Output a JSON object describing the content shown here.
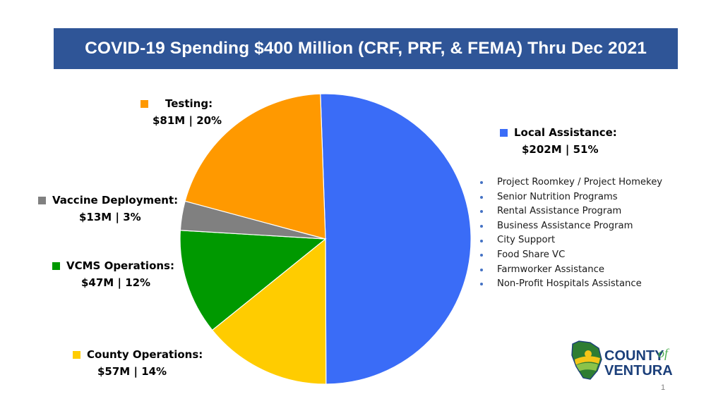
{
  "title": "COVID-19 Spending $400 Million (CRF, PRF, & FEMA) Thru Dec 2021",
  "chart_data": {
    "type": "pie",
    "title": "COVID-19 Spending $400 Million (CRF, PRF, & FEMA) Thru Dec 2021",
    "start_angle_deg": -2,
    "direction": "clockwise",
    "slices": [
      {
        "label": "Local Assistance:",
        "amount": "$202M",
        "percent_text": "51%",
        "value": 202,
        "color": "#3a6cf7"
      },
      {
        "label": "County Operations:",
        "amount": "$57M",
        "percent_text": "14%",
        "value": 57,
        "color": "#ffcc00"
      },
      {
        "label": "VCMS Operations:",
        "amount": "$47M",
        "percent_text": "12%",
        "value": 47,
        "color": "#009900"
      },
      {
        "label": "Vaccine Deployment:",
        "amount": "$13M",
        "percent_text": "3%",
        "value": 13,
        "color": "#808080"
      },
      {
        "label": "Testing:",
        "amount": "$81M",
        "percent_text": "20%",
        "value": 81,
        "color": "#ff9900"
      }
    ],
    "local_assistance_items": [
      "Project Roomkey / Project Homekey",
      "Senior Nutrition Programs",
      "Rental Assistance Program",
      "Business Assistance Program",
      "City Support",
      "Food Share VC",
      "Farmworker Assistance",
      "Non-Profit Hospitals Assistance"
    ],
    "bullet_color": "#4472c4"
  },
  "logo": {
    "line1": "COUNTY",
    "of": "of",
    "line2": "VENTURA"
  },
  "page_number": "1"
}
